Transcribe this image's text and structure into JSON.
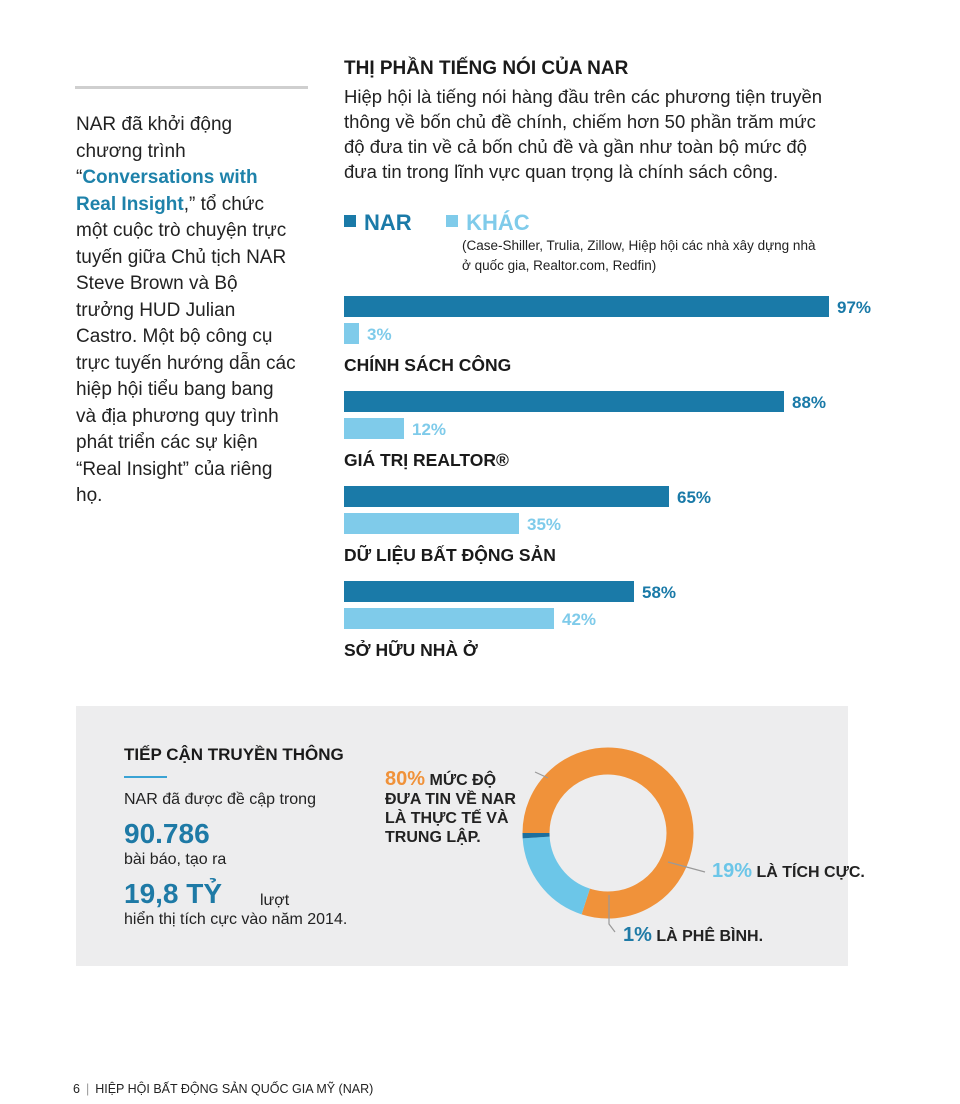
{
  "sidebar": {
    "before": "NAR đã khởi động chương trình “",
    "highlight": "Conversations with Real Insight",
    "after": ",” tổ chức một cuộc trò chuyện trực tuyến giữa Chủ tịch NAR Steve Brown và Bộ trưởng HUD Julian Castro. Một bộ công cụ trực tuyến hướng dẫn các hiệp hội tiểu bang bang và địa phương quy trình phát triển các sự kiện “Real Insight” của riêng họ."
  },
  "main": {
    "title": "THỊ PHẦN TIẾNG NÓI CỦA NAR",
    "description": "Hiệp hội là tiếng nói hàng đầu trên các phương tiện truyền thông về bốn chủ đề chính, chiếm hơn 50 phần trăm mức độ đưa tin về cả bốn chủ đề và gần như toàn bộ mức độ đưa tin trong lĩnh vực quan trọng là chính sách công.",
    "legend_note": "(Case-Shiller, Trulia, Zillow, Hiệp hội các nhà xây dựng nhà ở quốc gia, Realtor.com, Redfin)"
  },
  "chart_data": [
    {
      "type": "bar",
      "orientation": "horizontal",
      "categories": [
        "CHÍNH SÁCH CÔNG",
        "GIÁ TRỊ REALTOR®",
        "DỮ LIỆU BẤT ĐỘNG SẢN",
        "SỞ HỮU NHÀ Ở"
      ],
      "series": [
        {
          "name": "NAR",
          "values": [
            97,
            88,
            65,
            58
          ],
          "labels": [
            "97%",
            "88%",
            "65%",
            "58%"
          ],
          "color": "#1a7aa8"
        },
        {
          "name": "KHÁC",
          "values": [
            3,
            12,
            35,
            42
          ],
          "labels": [
            "3%",
            "12%",
            "35%",
            "42%"
          ],
          "color": "#7fcbea"
        }
      ],
      "xlim": [
        0,
        100
      ],
      "legend": "top-left"
    },
    {
      "type": "pie",
      "style": "donut",
      "slices": [
        {
          "value": 80,
          "pct": "80%",
          "label": "MỨC ĐỘ ĐƯA TIN VỀ NAR LÀ THỰC TẾ VÀ TRUNG LẬP.",
          "color": "#f0923a"
        },
        {
          "value": 19,
          "pct": "19%",
          "label": "LÀ TÍCH CỰC.",
          "color": "#6cc6e8"
        },
        {
          "value": 1,
          "pct": "1%",
          "label": "LÀ PHÊ BÌNH.",
          "color": "#1e6f9c"
        }
      ]
    }
  ],
  "media": {
    "title": "TIẾP CẬN TRUYỀN THÔNG",
    "intro": "NAR đã được đề cập trong",
    "articles": "90.786",
    "articles_text": "bài báo, tạo ra",
    "impressions": "19,8 TỶ",
    "impressions_unit": "lượt",
    "impressions_text": "hiển thị tích cực vào năm 2014."
  },
  "footer": {
    "page_number": "6",
    "org": "HIỆP HỘI BẤT ĐỘNG SẢN QUỐC GIA MỸ (NAR)"
  }
}
